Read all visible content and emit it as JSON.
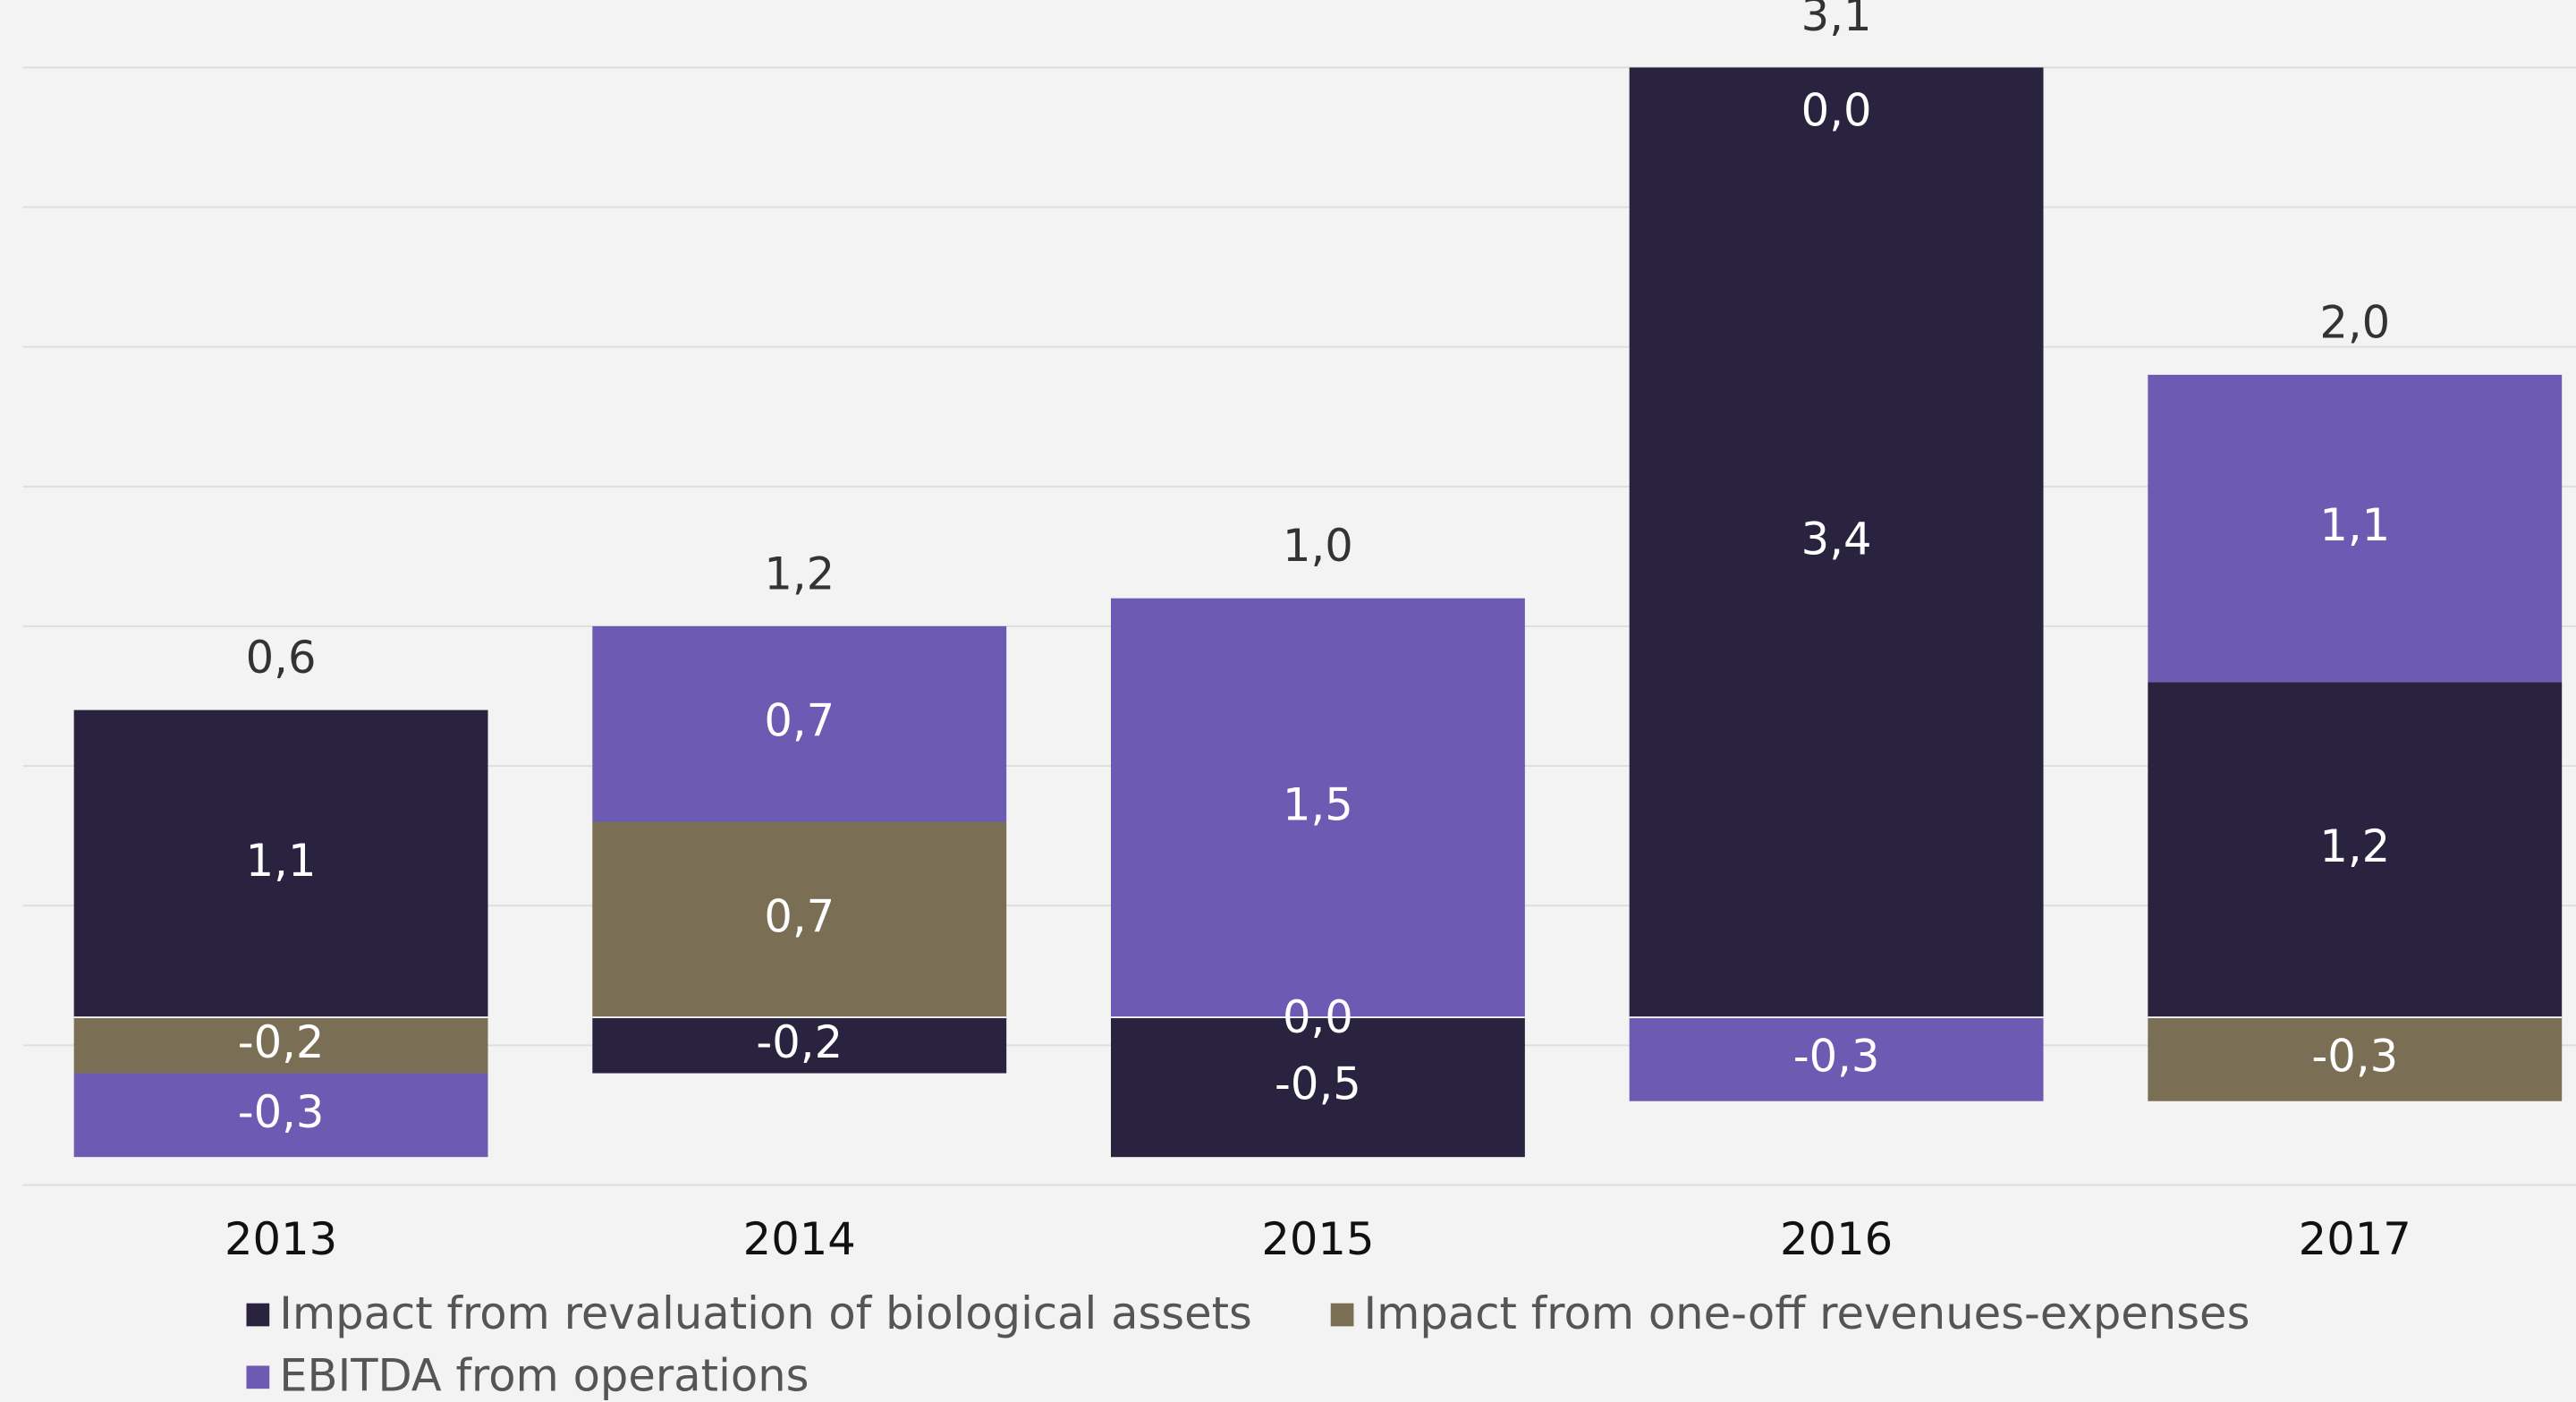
{
  "chart_data": {
    "type": "stacked-bar",
    "categories": [
      "2013",
      "2014",
      "2015",
      "2016",
      "2017"
    ],
    "series": [
      {
        "name": "Impact from revaluation of biological assets",
        "color": "#29233f",
        "values": [
          1.1,
          -0.2,
          -0.5,
          3.4,
          1.2
        ],
        "value_labels": [
          "1,1",
          "-0,2",
          "-0,5",
          "3,4",
          "1,2"
        ]
      },
      {
        "name": "Impact from one-off revenues-expenses",
        "color": "#7a6e55",
        "values": [
          -0.2,
          0.7,
          0.0,
          0.0,
          -0.3
        ],
        "value_labels": [
          "-0,2",
          "0,7",
          "0,0",
          "0,0",
          "-0,3"
        ]
      },
      {
        "name": "EBITDA from operations",
        "color": "#6d5ab2",
        "values": [
          -0.3,
          0.7,
          1.5,
          -0.3,
          1.1
        ],
        "value_labels": [
          "-0,3",
          "0,7",
          "1,5",
          "-0,3",
          "1,1"
        ]
      }
    ],
    "totals": [
      0.6,
      1.2,
      1.0,
      3.1,
      2.0
    ],
    "total_labels": [
      "0,6",
      "1,2",
      "1,0",
      "3,1",
      "2,0"
    ],
    "ylim": [
      -0.6,
      3.4
    ],
    "yticks": [
      -0.6,
      -0.1,
      0.4,
      0.9,
      1.4,
      1.9,
      2.4,
      2.9,
      3.4
    ],
    "grid": true
  }
}
